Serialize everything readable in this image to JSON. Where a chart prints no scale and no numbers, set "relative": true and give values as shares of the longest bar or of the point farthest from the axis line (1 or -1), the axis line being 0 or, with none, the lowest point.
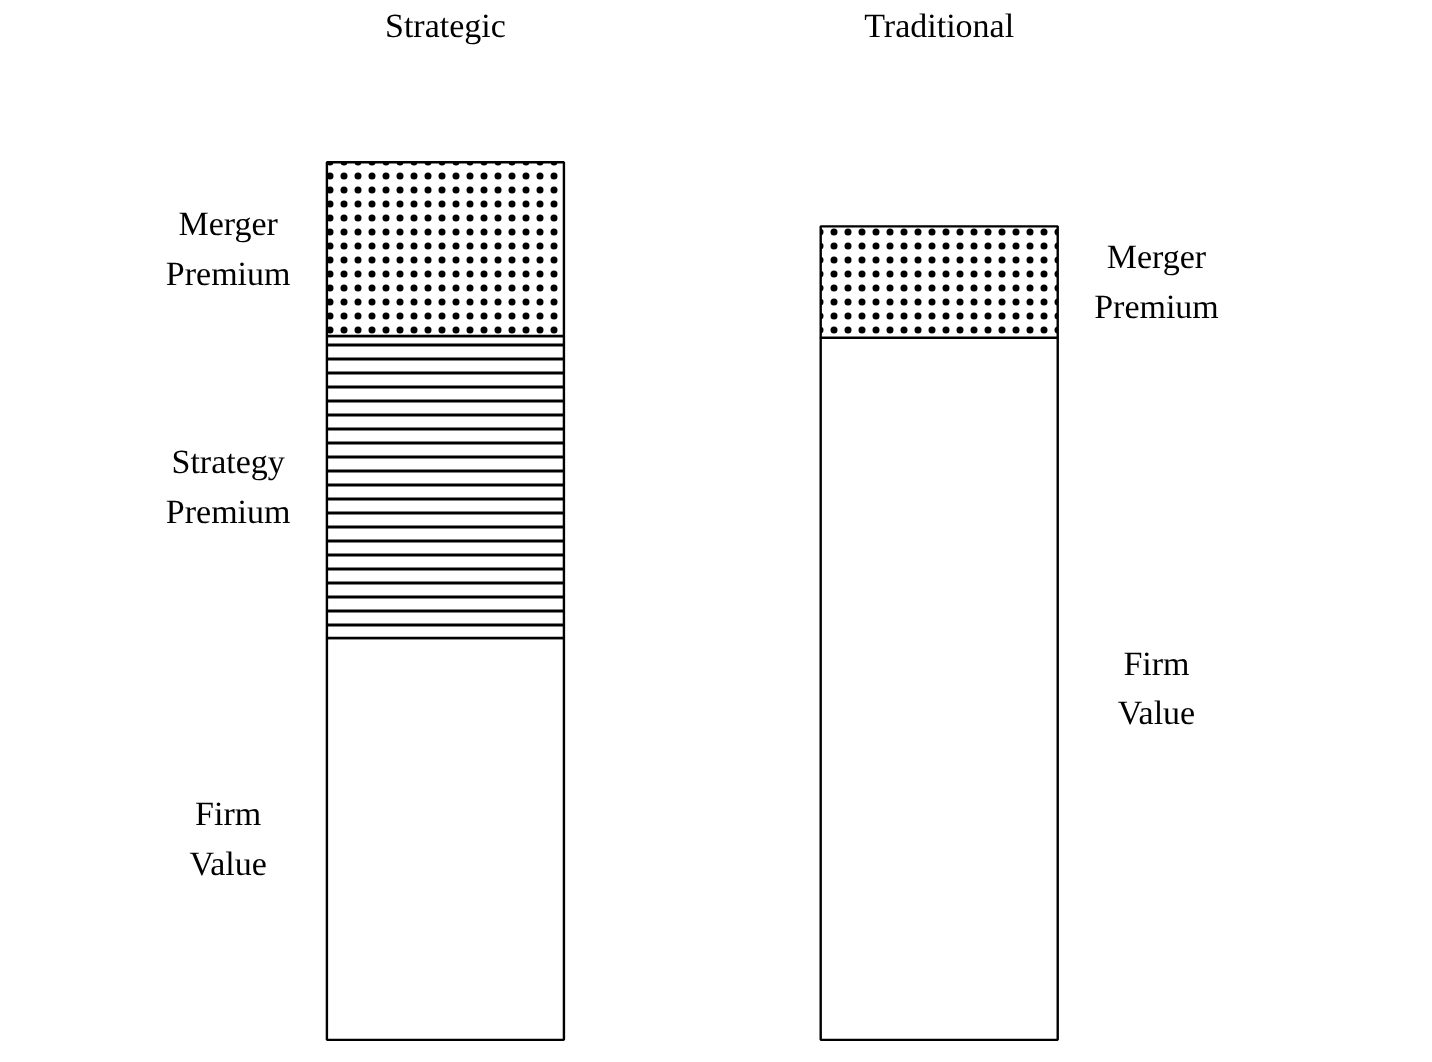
{
  "chart_data": {
    "type": "bar",
    "stacked": true,
    "relative": true,
    "grid": false,
    "categories": [
      "Strategic",
      "Traditional"
    ],
    "series": [
      {
        "name": "Firm Value",
        "color": "#ffffff",
        "values": [
          0.458,
          0.8
        ]
      },
      {
        "name": "Strategy Premium",
        "color": "#ffffff",
        "values": [
          0.344,
          0
        ]
      },
      {
        "name": "Merger Premium",
        "color": "#ffffff",
        "values": [
          0.198,
          0.127
        ]
      }
    ]
  }
}
